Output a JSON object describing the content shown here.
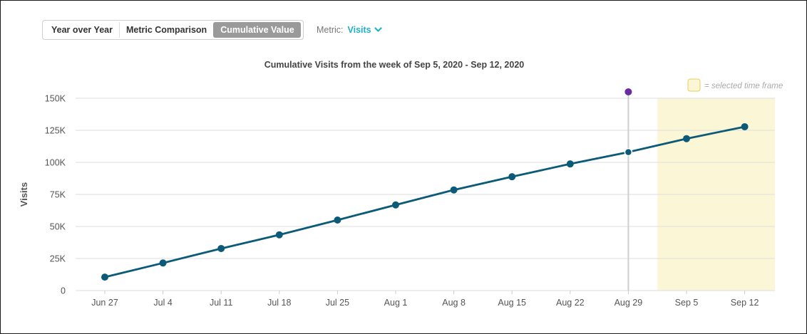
{
  "toolbar": {
    "tabs": [
      {
        "label": "Year over Year",
        "active": false
      },
      {
        "label": "Metric Comparison",
        "active": false
      },
      {
        "label": "Cumulative Value",
        "active": true
      }
    ],
    "metric_label": "Metric:",
    "metric_value": "Visits",
    "metric_icon": "chevron-down-icon"
  },
  "legend": {
    "text": "= selected time frame",
    "color": "#fbf6d6"
  },
  "colors": {
    "line": "#0b5a78",
    "marker": "#0b5a78",
    "hover_marker": "#6a2aa0",
    "highlight": "#fbf6d6",
    "grid": "#dddddd"
  },
  "chart_data": {
    "type": "line",
    "title": "Cumulative Visits from the week of Sep 5, 2020 - Sep 12, 2020",
    "xlabel": "",
    "ylabel": "Visits",
    "categories": [
      "Jun 27",
      "Jul 4",
      "Jul 11",
      "Jul 18",
      "Jul 25",
      "Aug 1",
      "Aug 8",
      "Aug 15",
      "Aug 22",
      "Aug 29",
      "Sep 5",
      "Sep 12"
    ],
    "series": [
      {
        "name": "",
        "values": [
          10500,
          21500,
          32800,
          43500,
          55000,
          66800,
          78500,
          88800,
          98800,
          108000,
          118500,
          127800
        ]
      }
    ],
    "ylim": [
      0,
      150000
    ],
    "yticks": [
      0,
      25000,
      50000,
      75000,
      100000,
      125000,
      150000
    ],
    "ytick_labels": [
      "0",
      "25K",
      "50K",
      "75K",
      "100K",
      "125K",
      "150K"
    ],
    "grid": true,
    "highlight_range": [
      "Sep 5",
      "Sep 12"
    ],
    "hover_category": "Aug 29",
    "legend_position": "top-right"
  }
}
